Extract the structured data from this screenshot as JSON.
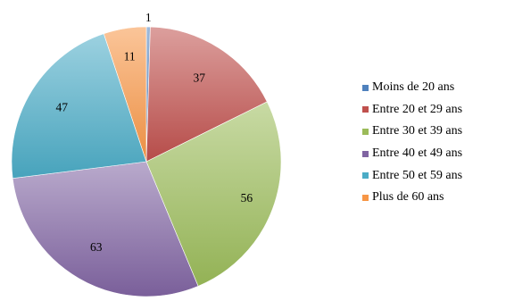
{
  "chart_data": {
    "type": "pie",
    "title": "",
    "categories": [
      "Moins de 20 ans",
      "Entre 20 et 29 ans",
      "Entre 30 et 39 ans",
      "Entre 40 et 49 ans",
      "Entre 50 et 59 ans",
      "Plus de 60 ans"
    ],
    "values": [
      1,
      37,
      56,
      63,
      47,
      11
    ],
    "colors": [
      "#4f81bd",
      "#c0504d",
      "#9bbb59",
      "#8064a2",
      "#4bacc6",
      "#f79646"
    ],
    "legend_position": "right",
    "data_labels": true
  }
}
